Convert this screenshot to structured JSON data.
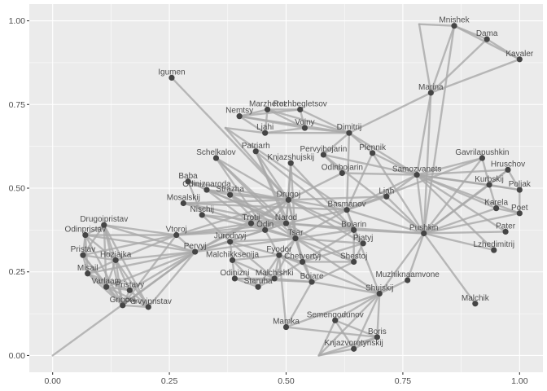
{
  "chart_data": {
    "type": "network",
    "xlim": [
      -0.05,
      1.05
    ],
    "ylim": [
      -0.05,
      1.05
    ],
    "x_ticks": [
      "0.00",
      "0.25",
      "0.50",
      "0.75",
      "1.00"
    ],
    "y_ticks": [
      "0.00",
      "0.25",
      "0.50",
      "0.75",
      "1.00"
    ],
    "grid": true,
    "nodes": [
      {
        "name": "Mnishek",
        "x": 0.86,
        "y": 0.985
      },
      {
        "name": "Dama",
        "x": 0.93,
        "y": 0.945
      },
      {
        "name": "Kavaler",
        "x": 1.0,
        "y": 0.885
      },
      {
        "name": "Igumen",
        "x": 0.255,
        "y": 0.83
      },
      {
        "name": "Marina",
        "x": 0.81,
        "y": 0.785
      },
      {
        "name": "Nemtsy",
        "x": 0.4,
        "y": 0.715
      },
      {
        "name": "Marzheret",
        "x": 0.46,
        "y": 0.735
      },
      {
        "name": "Rozhbegletsov",
        "x": 0.53,
        "y": 0.735
      },
      {
        "name": "Voiny",
        "x": 0.54,
        "y": 0.68
      },
      {
        "name": "Ljahi",
        "x": 0.455,
        "y": 0.665
      },
      {
        "name": "Dimitrij",
        "x": 0.635,
        "y": 0.665
      },
      {
        "name": "Patriarh",
        "x": 0.435,
        "y": 0.61
      },
      {
        "name": "Pervyibojarin",
        "x": 0.58,
        "y": 0.6
      },
      {
        "name": "Knjazshujskij",
        "x": 0.51,
        "y": 0.575
      },
      {
        "name": "Plennik",
        "x": 0.685,
        "y": 0.605
      },
      {
        "name": "Gavrilapushkin",
        "x": 0.92,
        "y": 0.59
      },
      {
        "name": "Schelkalov",
        "x": 0.35,
        "y": 0.59
      },
      {
        "name": "Odinbojarin",
        "x": 0.62,
        "y": 0.545
      },
      {
        "name": "Samozvanets",
        "x": 0.78,
        "y": 0.54
      },
      {
        "name": "Hruschov",
        "x": 0.975,
        "y": 0.555
      },
      {
        "name": "Baba",
        "x": 0.29,
        "y": 0.52
      },
      {
        "name": "Kurbskij",
        "x": 0.935,
        "y": 0.51
      },
      {
        "name": "Poljak",
        "x": 1.0,
        "y": 0.495
      },
      {
        "name": "Odiniznaroda",
        "x": 0.33,
        "y": 0.495
      },
      {
        "name": "Strazha",
        "x": 0.38,
        "y": 0.48
      },
      {
        "name": "Drugoj",
        "x": 0.505,
        "y": 0.465
      },
      {
        "name": "Ljah",
        "x": 0.715,
        "y": 0.475
      },
      {
        "name": "Mosalskij",
        "x": 0.28,
        "y": 0.455
      },
      {
        "name": "Basmanov",
        "x": 0.63,
        "y": 0.435
      },
      {
        "name": "Karela",
        "x": 0.95,
        "y": 0.44
      },
      {
        "name": "Poet",
        "x": 1.0,
        "y": 0.425
      },
      {
        "name": "Nischij",
        "x": 0.32,
        "y": 0.42
      },
      {
        "name": "Trotij",
        "x": 0.425,
        "y": 0.395
      },
      {
        "name": "Narod",
        "x": 0.5,
        "y": 0.395
      },
      {
        "name": "Odin",
        "x": 0.455,
        "y": 0.375
      },
      {
        "name": "Drugoipristav",
        "x": 0.11,
        "y": 0.39
      },
      {
        "name": "Vtoroj",
        "x": 0.265,
        "y": 0.36
      },
      {
        "name": "Bojarin",
        "x": 0.645,
        "y": 0.375
      },
      {
        "name": "Pater",
        "x": 0.97,
        "y": 0.37
      },
      {
        "name": "Pushkin",
        "x": 0.795,
        "y": 0.365
      },
      {
        "name": "Odinpristav",
        "x": 0.07,
        "y": 0.36
      },
      {
        "name": "Tsar",
        "x": 0.52,
        "y": 0.35
      },
      {
        "name": "Jurodivyj",
        "x": 0.38,
        "y": 0.34
      },
      {
        "name": "Pjatyj",
        "x": 0.665,
        "y": 0.335
      },
      {
        "name": "Pervyj",
        "x": 0.305,
        "y": 0.31
      },
      {
        "name": "Lzhedimitrij",
        "x": 0.945,
        "y": 0.315
      },
      {
        "name": "Fyodor",
        "x": 0.485,
        "y": 0.3
      },
      {
        "name": "Pristav",
        "x": 0.065,
        "y": 0.3
      },
      {
        "name": "Chetvertyj",
        "x": 0.535,
        "y": 0.28
      },
      {
        "name": "Hozjajka",
        "x": 0.135,
        "y": 0.285
      },
      {
        "name": "Malchikksenija",
        "x": 0.385,
        "y": 0.285
      },
      {
        "name": "Shestoj",
        "x": 0.645,
        "y": 0.28
      },
      {
        "name": "Misail",
        "x": 0.075,
        "y": 0.245
      },
      {
        "name": "Odinizni",
        "x": 0.39,
        "y": 0.23
      },
      {
        "name": "Malchishki",
        "x": 0.475,
        "y": 0.23
      },
      {
        "name": "Bojare",
        "x": 0.555,
        "y": 0.22
      },
      {
        "name": "Muzhiknaamvone",
        "x": 0.76,
        "y": 0.225
      },
      {
        "name": "Staruha",
        "x": 0.44,
        "y": 0.205
      },
      {
        "name": "Varlaam",
        "x": 0.115,
        "y": 0.205
      },
      {
        "name": "Pristavy",
        "x": 0.165,
        "y": 0.195
      },
      {
        "name": "Shujskij",
        "x": 0.7,
        "y": 0.185
      },
      {
        "name": "Grigorij",
        "x": 0.15,
        "y": 0.15
      },
      {
        "name": "Pervyipristav",
        "x": 0.205,
        "y": 0.145
      },
      {
        "name": "Malchik",
        "x": 0.905,
        "y": 0.155
      },
      {
        "name": "Semengodunov",
        "x": 0.605,
        "y": 0.105
      },
      {
        "name": "Mamka",
        "x": 0.5,
        "y": 0.085
      },
      {
        "name": "Boris",
        "x": 0.695,
        "y": 0.055
      },
      {
        "name": "Knjazvorotynskij",
        "x": 0.645,
        "y": 0.02
      }
    ],
    "edges": [
      [
        "Marina",
        "Mnishek"
      ],
      [
        "Marina",
        "Dama"
      ],
      [
        "Marina",
        "Kavaler"
      ],
      [
        "Mnishek",
        "Dama"
      ],
      [
        "Mnishek",
        "Kavaler"
      ],
      [
        "Dama",
        "Kavaler"
      ],
      [
        "Marina",
        "Samozvanets"
      ],
      [
        "Marina",
        "Pushkin"
      ],
      [
        "Marina",
        "Dimitrij"
      ],
      [
        "Mnishek",
        "Pushkin"
      ],
      [
        "Igumen",
        "Drugoj"
      ],
      [
        "Nemtsy",
        "Marzheret"
      ],
      [
        "Nemtsy",
        "Rozhbegletsov"
      ],
      [
        "Nemtsy",
        "Voiny"
      ],
      [
        "Nemtsy",
        "Dimitrij"
      ],
      [
        "Nemtsy",
        "Ljahi"
      ],
      [
        "Marzheret",
        "Rozhbegletsov"
      ],
      [
        "Marzheret",
        "Voiny"
      ],
      [
        "Marzheret",
        "Dimitrij"
      ],
      [
        "Marzheret",
        "Ljahi"
      ],
      [
        "Rozhbegletsov",
        "Voiny"
      ],
      [
        "Rozhbegletsov",
        "Dimitrij"
      ],
      [
        "Voiny",
        "Dimitrij"
      ],
      [
        "Ljahi",
        "Dimitrij"
      ],
      [
        "Ljahi",
        "Voiny"
      ],
      [
        "Dimitrij",
        "Plennik"
      ],
      [
        "Dimitrij",
        "Pervyibojarin"
      ],
      [
        "Dimitrij",
        "Basmanov"
      ],
      [
        "Dimitrij",
        "Samozvanets"
      ],
      [
        "Patriarh",
        "Tsar"
      ],
      [
        "Patriarh",
        "Drugoj"
      ],
      [
        "Patriarh",
        "Narod"
      ],
      [
        "Patriarh",
        "Bojarin"
      ],
      [
        "Knjazshujskij",
        "Tsar"
      ],
      [
        "Knjazshujskij",
        "Narod"
      ],
      [
        "Knjazshujskij",
        "Drugoj"
      ],
      [
        "Knjazshujskij",
        "Bojarin"
      ],
      [
        "Pervyibojarin",
        "Samozvanets"
      ],
      [
        "Pervyibojarin",
        "Pushkin"
      ],
      [
        "Pervyibojarin",
        "Odinbojarin"
      ],
      [
        "Plennik",
        "Samozvanets"
      ],
      [
        "Plennik",
        "Basmanov"
      ],
      [
        "Plennik",
        "Pushkin"
      ],
      [
        "Samozvanets",
        "Gavrilapushkin"
      ],
      [
        "Samozvanets",
        "Hruschov"
      ],
      [
        "Samozvanets",
        "Kurbskij"
      ],
      [
        "Samozvanets",
        "Poljak"
      ],
      [
        "Samozvanets",
        "Karela"
      ],
      [
        "Samozvanets",
        "Poet"
      ],
      [
        "Samozvanets",
        "Pater"
      ],
      [
        "Samozvanets",
        "Lzhedimitrij"
      ],
      [
        "Samozvanets",
        "Ljah"
      ],
      [
        "Samozvanets",
        "Basmanov"
      ],
      [
        "Samozvanets",
        "Pushkin"
      ],
      [
        "Samozvanets",
        "Odinbojarin"
      ],
      [
        "Gavrilapushkin",
        "Kurbskij"
      ],
      [
        "Gavrilapushkin",
        "Pushkin"
      ],
      [
        "Gavrilapushkin",
        "Basmanov"
      ],
      [
        "Hruschov",
        "Kurbskij"
      ],
      [
        "Hruschov",
        "Poljak"
      ],
      [
        "Kurbskij",
        "Poljak"
      ],
      [
        "Kurbskij",
        "Karela"
      ],
      [
        "Kurbskij",
        "Pushkin"
      ],
      [
        "Poljak",
        "Poet"
      ],
      [
        "Karela",
        "Poet"
      ],
      [
        "Karela",
        "Pushkin"
      ],
      [
        "Pater",
        "Pushkin"
      ],
      [
        "Lzhedimitrij",
        "Pushkin"
      ],
      [
        "Poet",
        "Pushkin"
      ],
      [
        "Hruschov",
        "Pushkin"
      ],
      [
        "Pushkin",
        "Basmanov"
      ],
      [
        "Pushkin",
        "Shujskij"
      ],
      [
        "Pushkin",
        "Malchik"
      ],
      [
        "Pushkin",
        "Muzhiknaamvone"
      ],
      [
        "Pushkin",
        "Narod"
      ],
      [
        "Pushkin",
        "Bojarin"
      ],
      [
        "Pushkin",
        "Ljah"
      ],
      [
        "Ljah",
        "Drugoj"
      ],
      [
        "Ljah",
        "Basmanov"
      ],
      [
        "Schelkalov",
        "Narod"
      ],
      [
        "Schelkalov",
        "Drugoj"
      ],
      [
        "Schelkalov",
        "Tsar"
      ],
      [
        "Schelkalov",
        "Odin"
      ],
      [
        "Baba",
        "Odiniznaroda"
      ],
      [
        "Baba",
        "Drugoj"
      ],
      [
        "Baba",
        "Narod"
      ],
      [
        "Baba",
        "Nischij"
      ],
      [
        "Odiniznaroda",
        "Drugoj"
      ],
      [
        "Odiniznaroda",
        "Strazha"
      ],
      [
        "Odiniznaroda",
        "Narod"
      ],
      [
        "Odiniznaroda",
        "Trotij"
      ],
      [
        "Strazha",
        "Narod"
      ],
      [
        "Strazha",
        "Odin"
      ],
      [
        "Strazha",
        "Drugoj"
      ],
      [
        "Strazha",
        "Tsar"
      ],
      [
        "Mosalskij",
        "Narod"
      ],
      [
        "Mosalskij",
        "Drugoj"
      ],
      [
        "Mosalskij",
        "Trotij"
      ],
      [
        "Mosalskij",
        "Basmanov"
      ],
      [
        "Nischij",
        "Narod"
      ],
      [
        "Nischij",
        "Odin"
      ],
      [
        "Nischij",
        "Jurodivyj"
      ],
      [
        "Drugoj",
        "Narod"
      ],
      [
        "Drugoj",
        "Odin"
      ],
      [
        "Drugoj",
        "Trotij"
      ],
      [
        "Drugoj",
        "Tsar"
      ],
      [
        "Drugoj",
        "Basmanov"
      ],
      [
        "Drugoj",
        "Odinbojarin"
      ],
      [
        "Drugoj",
        "Bojarin"
      ],
      [
        "Drugoj",
        "Chetvertyj"
      ],
      [
        "Drugoj",
        "Pjatyj"
      ],
      [
        "Trotij",
        "Odin"
      ],
      [
        "Trotij",
        "Narod"
      ],
      [
        "Trotij",
        "Tsar"
      ],
      [
        "Trotij",
        "Vtoroj"
      ],
      [
        "Trotij",
        "Pervyj"
      ],
      [
        "Narod",
        "Odin"
      ],
      [
        "Narod",
        "Tsar"
      ],
      [
        "Narod",
        "Bojarin"
      ],
      [
        "Narod",
        "Basmanov"
      ],
      [
        "Narod",
        "Shestoj"
      ],
      [
        "Odin",
        "Tsar"
      ],
      [
        "Odin",
        "Fyodor"
      ],
      [
        "Odin",
        "Vtoroj"
      ],
      [
        "Odin",
        "Pervyj"
      ],
      [
        "Tsar",
        "Basmanov"
      ],
      [
        "Tsar",
        "Bojarin"
      ],
      [
        "Tsar",
        "Fyodor"
      ],
      [
        "Tsar",
        "Chetvertyj"
      ],
      [
        "Tsar",
        "Pjatyj"
      ],
      [
        "Tsar",
        "Shestoj"
      ],
      [
        "Tsar",
        "Shujskij"
      ],
      [
        "Tsar",
        "Malchishki"
      ],
      [
        "Tsar",
        "Jurodivyj"
      ],
      [
        "Tsar",
        "Bojare"
      ],
      [
        "Bojarin",
        "Pjatyj"
      ],
      [
        "Bojarin",
        "Shestoj"
      ],
      [
        "Bojarin",
        "Chetvertyj"
      ],
      [
        "Bojarin",
        "Basmanov"
      ],
      [
        "Pjatyj",
        "Shestoj"
      ],
      [
        "Pjatyj",
        "Chetvertyj"
      ],
      [
        "Shestoj",
        "Chetvertyj"
      ],
      [
        "Fyodor",
        "Chetvertyj"
      ],
      [
        "Fyodor",
        "Bojare"
      ],
      [
        "Fyodor",
        "Staruha"
      ],
      [
        "Fyodor",
        "Malchishki"
      ],
      [
        "Fyodor",
        "Shujskij"
      ],
      [
        "Jurodivyj",
        "Malchishki"
      ],
      [
        "Jurodivyj",
        "Pervyj"
      ],
      [
        "Jurodivyj",
        "Malchikksenija"
      ],
      [
        "Jurodivyj",
        "Chetvertyj"
      ],
      [
        "Malchikksenija",
        "Odinizni"
      ],
      [
        "Malchikksenija",
        "Staruha"
      ],
      [
        "Malchikksenija",
        "Malchishki"
      ],
      [
        "Malchikksenija",
        "Fyodor"
      ],
      [
        "Odinizni",
        "Staruha"
      ],
      [
        "Odinizni",
        "Malchishki"
      ],
      [
        "Odinizni",
        "Bojare"
      ],
      [
        "Malchishki",
        "Staruha"
      ],
      [
        "Malchishki",
        "Bojare"
      ],
      [
        "Malchishki",
        "Chetvertyj"
      ],
      [
        "Bojare",
        "Shujskij"
      ],
      [
        "Bojare",
        "Chetvertyj"
      ],
      [
        "Bojare",
        "Shestoj"
      ],
      [
        "Shujskij",
        "Semengodunov"
      ],
      [
        "Shujskij",
        "Boris"
      ],
      [
        "Shujskij",
        "Knjazvorotynskij"
      ],
      [
        "Shujskij",
        "Muzhiknaamvone"
      ],
      [
        "Shujskij",
        "Mamka"
      ],
      [
        "Shujskij",
        "Basmanov"
      ],
      [
        "Mamka",
        "Boris"
      ],
      [
        "Mamka",
        "Bojare"
      ],
      [
        "Mamka",
        "Fyodor"
      ],
      [
        "Boris",
        "Semengodunov"
      ],
      [
        "Boris",
        "Knjazvorotynskij"
      ],
      [
        "Semengodunov",
        "Knjazvorotynskij"
      ],
      [
        "Vtoroj",
        "Pervyj"
      ],
      [
        "Vtoroj",
        "Drugoipristav"
      ],
      [
        "Vtoroj",
        "Odinpristav"
      ],
      [
        "Vtoroj",
        "Pristav"
      ],
      [
        "Vtoroj",
        "Narod"
      ],
      [
        "Vtoroj",
        "Drugoj"
      ],
      [
        "Vtoroj",
        "Hozjajka"
      ],
      [
        "Vtoroj",
        "Grigorij"
      ],
      [
        "Pervyj",
        "Drugoj"
      ],
      [
        "Pervyj",
        "Narod"
      ],
      [
        "Pervyj",
        "Tsar"
      ],
      [
        "Pervyj",
        "Hozjajka"
      ],
      [
        "Pervyj",
        "Grigorij"
      ],
      [
        "Pervyj",
        "Misail"
      ],
      [
        "Pervyj",
        "Varlaam"
      ],
      [
        "Pervyj",
        "Pristavy"
      ],
      [
        "Pervyj",
        "Pervyipristav"
      ],
      [
        "Drugoipristav",
        "Odinpristav"
      ],
      [
        "Drugoipristav",
        "Pristav"
      ],
      [
        "Drugoipristav",
        "Hozjajka"
      ],
      [
        "Drugoipristav",
        "Grigorij"
      ],
      [
        "Drugoipristav",
        "Varlaam"
      ],
      [
        "Drugoipristav",
        "Pervyipristav"
      ],
      [
        "Drugoipristav",
        "Pervyj"
      ],
      [
        "Odinpristav",
        "Pristav"
      ],
      [
        "Odinpristav",
        "Hozjajka"
      ],
      [
        "Odinpristav",
        "Grigorij"
      ],
      [
        "Odinpristav",
        "Misail"
      ],
      [
        "Odinpristav",
        "Pervyj"
      ],
      [
        "Pristav",
        "Hozjajka"
      ],
      [
        "Pristav",
        "Grigorij"
      ],
      [
        "Pristav",
        "Misail"
      ],
      [
        "Pristav",
        "Varlaam"
      ],
      [
        "Hozjajka",
        "Grigorij"
      ],
      [
        "Hozjajka",
        "Misail"
      ],
      [
        "Hozjajka",
        "Varlaam"
      ],
      [
        "Hozjajka",
        "Pristavy"
      ],
      [
        "Hozjajka",
        "Pervyipristav"
      ],
      [
        "Misail",
        "Grigorij"
      ],
      [
        "Misail",
        "Varlaam"
      ],
      [
        "Misail",
        "Pristavy"
      ],
      [
        "Varlaam",
        "Grigorij"
      ],
      [
        "Varlaam",
        "Pristavy"
      ],
      [
        "Varlaam",
        "Pervyipristav"
      ],
      [
        "Grigorij",
        "Pristavy"
      ],
      [
        "Grigorij",
        "Pervyipristav"
      ],
      [
        "Pristavy",
        "Pervyipristav"
      ]
    ],
    "line_edges": [
      [
        0.0,
        0.0,
        0.305,
        0.31
      ],
      [
        0.37,
        0.68,
        0.455,
        0.665
      ],
      [
        0.37,
        0.68,
        0.63,
        0.435
      ],
      [
        0.37,
        0.68,
        0.505,
        0.465
      ],
      [
        0.785,
        0.99,
        0.86,
        0.985
      ],
      [
        0.785,
        0.99,
        0.81,
        0.785
      ],
      [
        0.57,
        0.0,
        0.7,
        0.185
      ],
      [
        0.57,
        0.0,
        0.645,
        0.02
      ],
      [
        0.57,
        0.0,
        0.605,
        0.105
      ],
      [
        0.57,
        0.0,
        0.695,
        0.055
      ]
    ]
  }
}
